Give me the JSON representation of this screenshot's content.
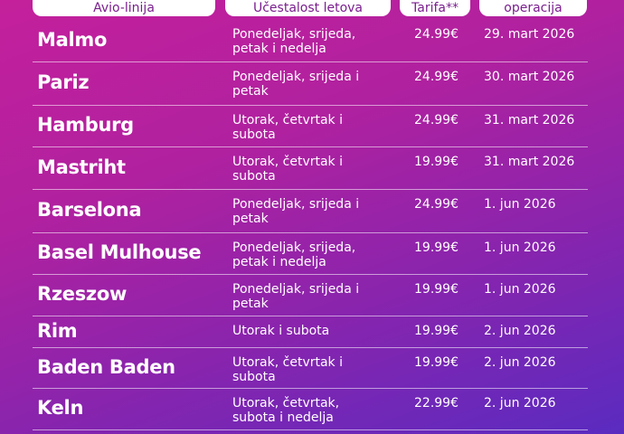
{
  "header": {
    "route": "Avio-linija",
    "frequency": "Učestalost letova",
    "fare": "Tarifa**",
    "start": "Početak operacija"
  },
  "rows": [
    {
      "city": "Malmo",
      "frequency": "Ponedeljak, srijeda, petak i nedelja",
      "fare": "24.99€",
      "start": "29. mart 2026"
    },
    {
      "city": "Pariz",
      "frequency": "Ponedeljak, srijeda i petak",
      "fare": "24.99€",
      "start": "30. mart 2026"
    },
    {
      "city": "Hamburg",
      "frequency": "Utorak, četvrtak i subota",
      "fare": "24.99€",
      "start": "31. mart 2026"
    },
    {
      "city": "Mastriht",
      "frequency": "Utorak, četvrtak i subota",
      "fare": "19.99€",
      "start": "31. mart 2026"
    },
    {
      "city": "Barselona",
      "frequency": "Ponedeljak, srijeda i petak",
      "fare": "24.99€",
      "start": "1. jun 2026"
    },
    {
      "city": "Basel Mulhouse",
      "frequency": "Ponedeljak, srijeda, petak i nedelja",
      "fare": "19.99€",
      "start": "1. jun 2026"
    },
    {
      "city": "Rzeszow",
      "frequency": "Ponedeljak, srijeda i petak",
      "fare": "19.99€",
      "start": "1. jun 2026"
    },
    {
      "city": "Rim",
      "frequency": "Utorak i subota",
      "fare": "19.99€",
      "start": "2. jun 2026"
    },
    {
      "city": "Baden Baden",
      "frequency": "Utorak, četvrtak i subota",
      "fare": "19.99€",
      "start": "2. jun 2026"
    },
    {
      "city": "Keln",
      "frequency": "Utorak, četvrtak, subota i nedelja",
      "fare": "22.99€",
      "start": "2. jun 2026"
    }
  ]
}
